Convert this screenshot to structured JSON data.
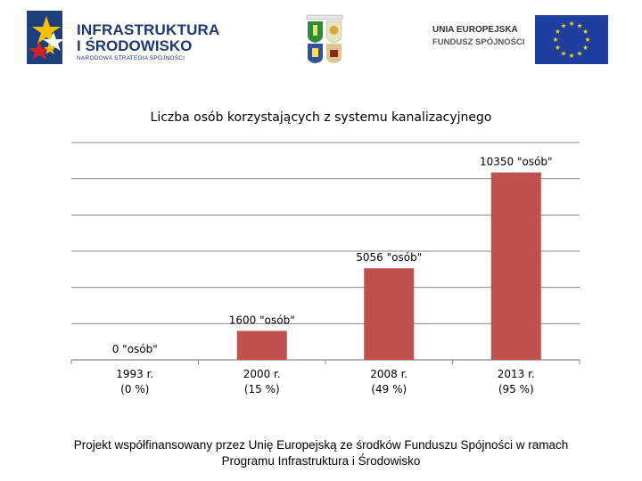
{
  "logos": {
    "left_line1": "INFRASTRUKTURA",
    "left_line2": "I ŚRODOWISKO",
    "left_line3": "NARODOWA STRATEGIA SPÓJNOŚCI",
    "right_line1": "UNIA EUROPEJSKA",
    "right_line2": "FUNDUSZ SPÓJNOŚCI"
  },
  "chart_data": {
    "type": "bar",
    "title": "Liczba osób korzystających z systemu kanalizacyjnego",
    "categories": [
      "1993 r.",
      "2000 r.",
      "2008 r.",
      "2013 r."
    ],
    "category_sublabels": [
      "(0 %)",
      "(15 %)",
      "(49 %)",
      "(95 %)"
    ],
    "values": [
      0,
      1600,
      5056,
      10350
    ],
    "data_labels": [
      "0 \"osób\"",
      "1600 \"osób\"",
      "5056 \"osób\"",
      "10350 \"osób\""
    ],
    "ylim": [
      0,
      12000
    ],
    "grid": true,
    "colors": {
      "bar": "#c0504d",
      "grid": "#868686"
    }
  },
  "footer": {
    "line1": "Projekt współfinansowany przez Unię Europejską ze środków Funduszu Spójności w ramach",
    "line2": "Programu Infrastruktura i Środowisko"
  }
}
